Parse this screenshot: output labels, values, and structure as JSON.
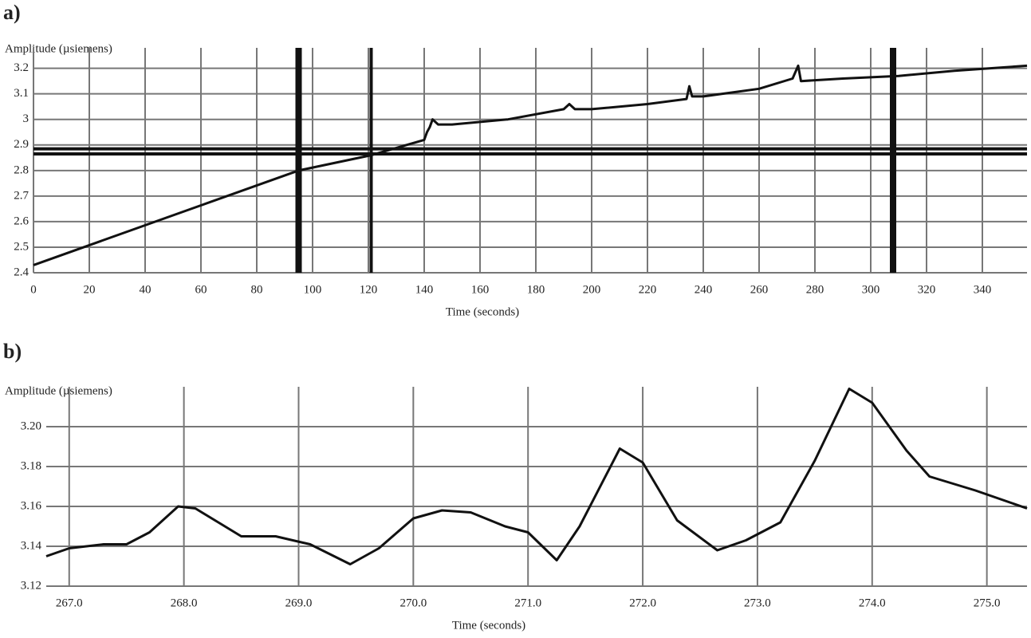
{
  "chart_data": [
    {
      "type": "line",
      "panel_label": "a)",
      "y_label": "Amplitude (µsiemens)",
      "x_label": "Time (seconds)",
      "color": "#111111",
      "grid": true,
      "x": [
        0,
        95,
        121,
        140,
        141,
        142,
        143,
        145,
        150,
        170,
        190,
        192,
        194,
        200,
        220,
        234,
        235,
        236,
        240,
        260,
        272,
        274,
        275,
        290,
        310,
        330,
        356
      ],
      "values": [
        2.43,
        2.8,
        2.86,
        2.92,
        2.95,
        2.97,
        3.0,
        2.98,
        2.98,
        3.0,
        3.04,
        3.06,
        3.04,
        3.04,
        3.06,
        3.08,
        3.13,
        3.09,
        3.09,
        3.12,
        3.16,
        3.21,
        3.15,
        3.16,
        3.17,
        3.19,
        3.21
      ],
      "vlines": [
        95,
        121,
        308
      ],
      "hlines": [
        2.865,
        2.885
      ],
      "xlim": [
        0,
        356
      ],
      "ylim": [
        2.4,
        3.28
      ],
      "xticks": [
        0,
        20,
        40,
        60,
        80,
        100,
        120,
        140,
        160,
        180,
        200,
        220,
        240,
        260,
        280,
        300,
        320,
        340
      ],
      "yticks": [
        2.4,
        2.5,
        2.6,
        2.7,
        2.8,
        2.9,
        3.0,
        3.1,
        3.2
      ]
    },
    {
      "type": "line",
      "panel_label": "b)",
      "y_label": "Amplitude (µsiemens)",
      "x_label": "Time (seconds)",
      "color": "#111111",
      "grid": true,
      "x": [
        266.8,
        267.0,
        267.3,
        267.5,
        267.7,
        267.95,
        268.1,
        268.3,
        268.5,
        268.8,
        269.1,
        269.45,
        269.7,
        270.0,
        270.25,
        270.5,
        270.8,
        271.0,
        271.25,
        271.45,
        271.8,
        272.0,
        272.3,
        272.65,
        272.9,
        273.2,
        273.5,
        273.8,
        274.0,
        274.3,
        274.5,
        274.9,
        275.35
      ],
      "values": [
        3.135,
        3.139,
        3.141,
        3.141,
        3.147,
        3.16,
        3.159,
        3.152,
        3.145,
        3.145,
        3.141,
        3.131,
        3.139,
        3.154,
        3.158,
        3.157,
        3.15,
        3.147,
        3.133,
        3.15,
        3.189,
        3.182,
        3.153,
        3.138,
        3.143,
        3.152,
        3.183,
        3.219,
        3.212,
        3.188,
        3.175,
        3.168,
        3.159
      ],
      "xlim": [
        266.8,
        275.35
      ],
      "ylim": [
        3.12,
        3.22
      ],
      "xticks": [
        {
          "value": 267,
          "label": "267.0"
        },
        {
          "value": 268,
          "label": "268.0"
        },
        {
          "value": 269,
          "label": "269.0"
        },
        {
          "value": 270,
          "label": "270.0"
        },
        {
          "value": 271,
          "label": "271.0"
        },
        {
          "value": 272,
          "label": "272.0"
        },
        {
          "value": 273,
          "label": "273.0"
        },
        {
          "value": 274,
          "label": "274.0"
        },
        {
          "value": 275,
          "label": "275.0"
        }
      ],
      "yticks": [
        3.12,
        3.14,
        3.16,
        3.18,
        {
          "value": 3.2,
          "label": "3.20"
        }
      ]
    }
  ]
}
